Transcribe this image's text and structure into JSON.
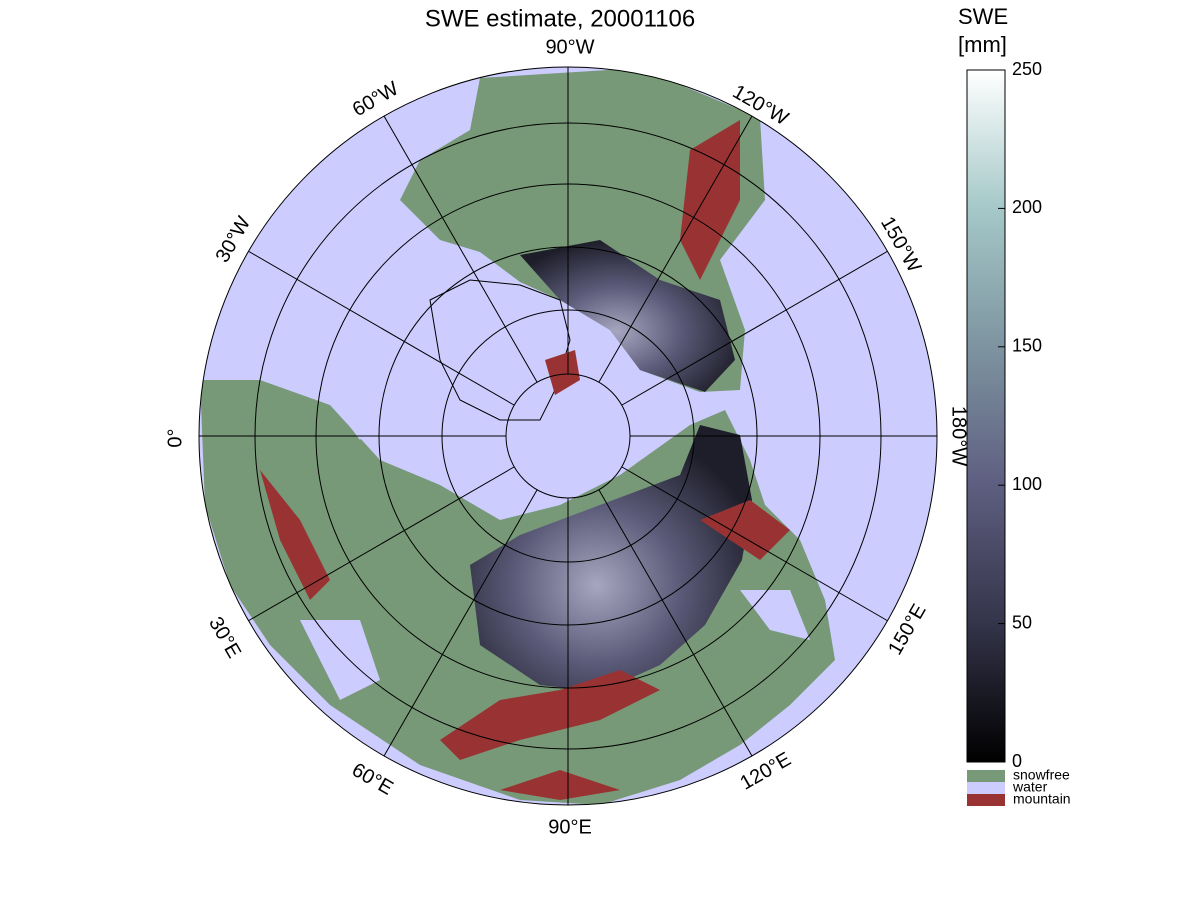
{
  "title": "SWE estimate, 20001106",
  "meridian_labels": [
    "90°W",
    "120°W",
    "150°W",
    "180°W",
    "150°E",
    "120°E",
    "90°E",
    "60°E",
    "30°E",
    "0°",
    "30°W",
    "60°W"
  ],
  "colorbar": {
    "label": [
      "SWE",
      "[mm]"
    ],
    "lim": [
      0,
      250
    ],
    "ticks": [
      0,
      50,
      100,
      150,
      200,
      250
    ],
    "categories": [
      {
        "name": "snowfree",
        "color": "#779977"
      },
      {
        "name": "water",
        "color": "#ccccff"
      },
      {
        "name": "mountain",
        "color": "#993333"
      }
    ]
  }
}
